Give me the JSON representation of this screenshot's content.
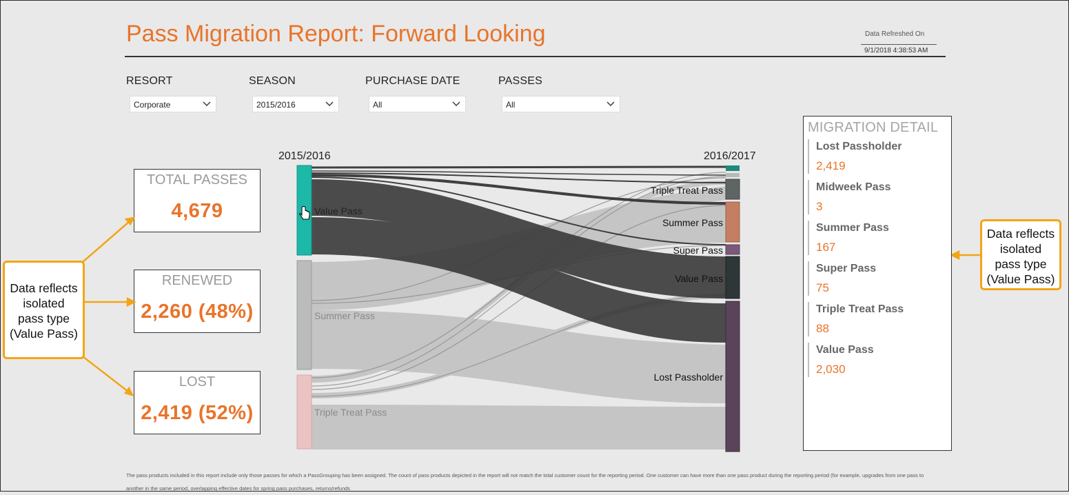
{
  "header": {
    "title": "Pass Migration Report: Forward Looking",
    "refresh_label": "Data Refreshed On",
    "refresh_value": "9/1/2018 4:38:53 AM"
  },
  "filters": [
    {
      "label": "RESORT",
      "value": "Corporate"
    },
    {
      "label": "SEASON",
      "value": "2015/2016"
    },
    {
      "label": "PURCHASE DATE",
      "value": "All"
    },
    {
      "label": "PASSES",
      "value": "All"
    }
  ],
  "kpis": [
    {
      "label": "TOTAL PASSES",
      "value": "4,679"
    },
    {
      "label": "RENEWED",
      "value": "2,260 (48%)"
    },
    {
      "label": "LOST",
      "value": "2,419 (52%)"
    }
  ],
  "sankey": {
    "left_header": "2015/2016",
    "right_header": "2016/2017",
    "left_nodes": [
      {
        "label": "Value Pass",
        "color": "#1cb8a8"
      },
      {
        "label": "Summer Pass",
        "color": "#b9bcbb"
      },
      {
        "label": "Triple Treat Pass",
        "color": "#ecc3c3"
      }
    ],
    "right_nodes": [
      {
        "label": "",
        "color": "#1e8a7c"
      },
      {
        "label": "",
        "color": "#b8bab9"
      },
      {
        "label": "Triple Treat Pass",
        "color": "#5e6564"
      },
      {
        "label": "Summer Pass",
        "color": "#c47f62"
      },
      {
        "label": "Super Pass",
        "color": "#7b5a79"
      },
      {
        "label": "Value Pass",
        "color": "#2f3637"
      },
      {
        "label": "Lost Passholder",
        "color": "#5a4459"
      }
    ]
  },
  "migration_detail": {
    "heading": "MIGRATION DETAIL",
    "items": [
      {
        "name": "Lost Passholder",
        "value": "2,419"
      },
      {
        "name": "Midweek Pass",
        "value": "3"
      },
      {
        "name": "Summer Pass",
        "value": "167"
      },
      {
        "name": "Super Pass",
        "value": "75"
      },
      {
        "name": "Triple Treat Pass",
        "value": "88"
      },
      {
        "name": "Value Pass",
        "value": "2,030"
      }
    ]
  },
  "callouts": {
    "left": [
      "Data reflects",
      "isolated",
      "pass type",
      "(Value Pass)"
    ],
    "right": [
      "Data reflects",
      "isolated",
      "pass type",
      "(Value Pass)"
    ]
  },
  "footnote": "The pass products included in this report include  only those passes for which a PassGrouping has been assigned. The count of pass products depicted in the report will not match the total customer count for the reporting period. One customer can have more than one pass product during the reporting period (for example, upgrades from one pass to another in the same period, overlapping effective dates for spring pass purchases, returns/refunds",
  "colors": {
    "accent": "#e8742a",
    "callout_border": "#f2a516"
  }
}
